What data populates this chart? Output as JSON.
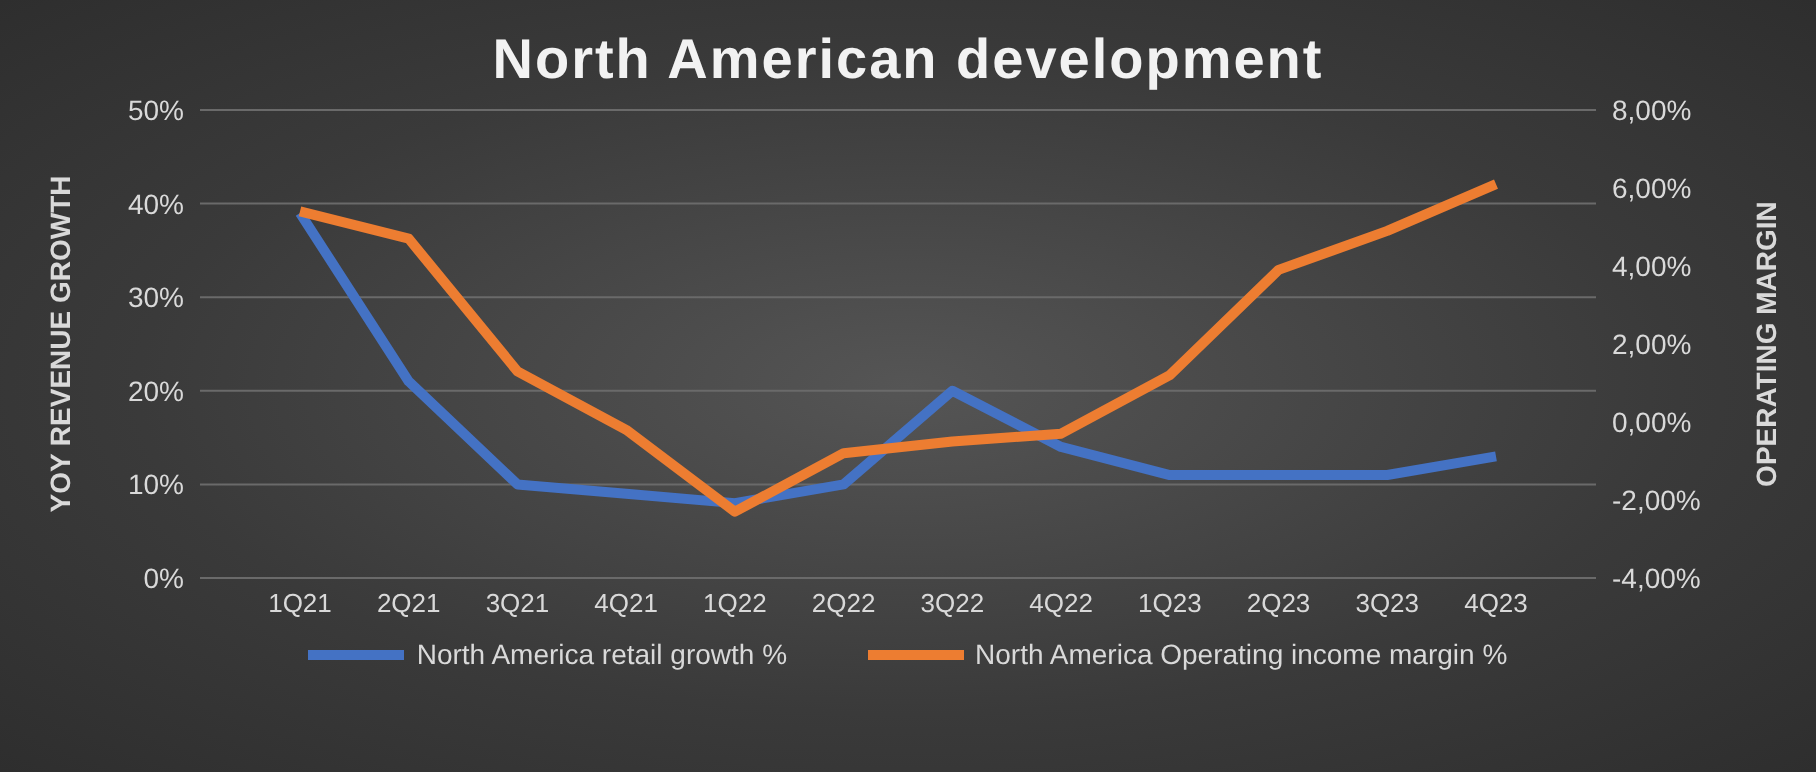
{
  "chart_data": {
    "type": "line",
    "title": "North American development",
    "ylabel": "YOY REVENUE GROWTH",
    "y2label": "OPERATING MARGIN",
    "categories": [
      "1Q21",
      "2Q21",
      "3Q21",
      "4Q21",
      "1Q22",
      "2Q22",
      "3Q22",
      "4Q22",
      "1Q23",
      "2Q23",
      "3Q23",
      "4Q23"
    ],
    "series": [
      {
        "name": "North America retail growth %",
        "color": "#4472c4",
        "values": [
          39,
          21,
          10,
          9,
          8,
          10,
          20,
          14,
          11,
          11,
          11,
          13
        ]
      },
      {
        "name": "North America Operating income margin %",
        "color": "#ed7d31",
        "axis": "y2",
        "values": [
          5.4,
          4.7,
          1.3,
          -0.2,
          -2.3,
          -0.8,
          -0.5,
          -0.3,
          1.2,
          3.9,
          4.9,
          6.1
        ]
      }
    ],
    "ylim": [
      0,
      50
    ],
    "yticks": [
      {
        "value": 0,
        "label": "0%"
      },
      {
        "value": 10,
        "label": "10%"
      },
      {
        "value": 20,
        "label": "20%"
      },
      {
        "value": 30,
        "label": "30%"
      },
      {
        "value": 40,
        "label": "40%"
      },
      {
        "value": 50,
        "label": "50%"
      }
    ],
    "y2lim": [
      -4,
      8
    ],
    "y2ticks": [
      {
        "value": -4,
        "label": "-4,00%"
      },
      {
        "value": -2,
        "label": "-2,00%"
      },
      {
        "value": 0,
        "label": "0,00%"
      },
      {
        "value": 2,
        "label": "2,00%"
      },
      {
        "value": 4,
        "label": "4,00%"
      },
      {
        "value": 6,
        "label": "6,00%"
      },
      {
        "value": 8,
        "label": "8,00%"
      }
    ],
    "grid": "y",
    "legend": "bottom",
    "marker": "none",
    "line_style": "solid"
  }
}
